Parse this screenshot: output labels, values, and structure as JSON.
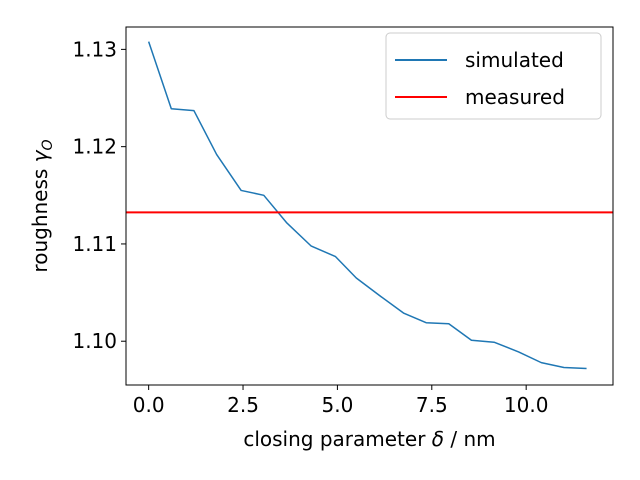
{
  "chart_data": {
    "type": "line",
    "xlabel": {
      "prefix": "closing parameter ",
      "symbol": "δ",
      "suffix": " / nm"
    },
    "ylabel": {
      "prefix": "roughness ",
      "symbol": "γ",
      "subscript": "O"
    },
    "xlim": [
      -0.6,
      12.3
    ],
    "ylim": [
      1.0955,
      1.1323
    ],
    "xticks": [
      0.0,
      2.5,
      5.0,
      7.5,
      10.0
    ],
    "xtick_labels": [
      "0.0",
      "2.5",
      "5.0",
      "7.5",
      "10.0"
    ],
    "yticks": [
      1.1,
      1.11,
      1.12,
      1.13
    ],
    "ytick_labels": [
      "1.10",
      "1.11",
      "1.12",
      "1.13"
    ],
    "legend_position": "upper-right",
    "series": [
      {
        "name": "simulated",
        "color": "#1f77b4",
        "x": [
          0.0,
          0.6,
          1.2,
          1.8,
          2.45,
          3.05,
          3.65,
          4.3,
          4.95,
          5.5,
          6.15,
          6.75,
          7.35,
          7.95,
          8.55,
          9.15,
          9.8,
          10.4,
          11.0,
          11.6
        ],
        "y": [
          1.1308,
          1.1239,
          1.1237,
          1.1192,
          1.1155,
          1.115,
          1.1122,
          1.1098,
          1.1087,
          1.1065,
          1.1046,
          1.1029,
          1.1019,
          1.1018,
          1.1001,
          1.0999,
          1.0989,
          1.0978,
          1.0973,
          1.0972
        ]
      },
      {
        "name": "measured",
        "color": "#ff0000",
        "constant_y": 1.11325
      }
    ]
  }
}
